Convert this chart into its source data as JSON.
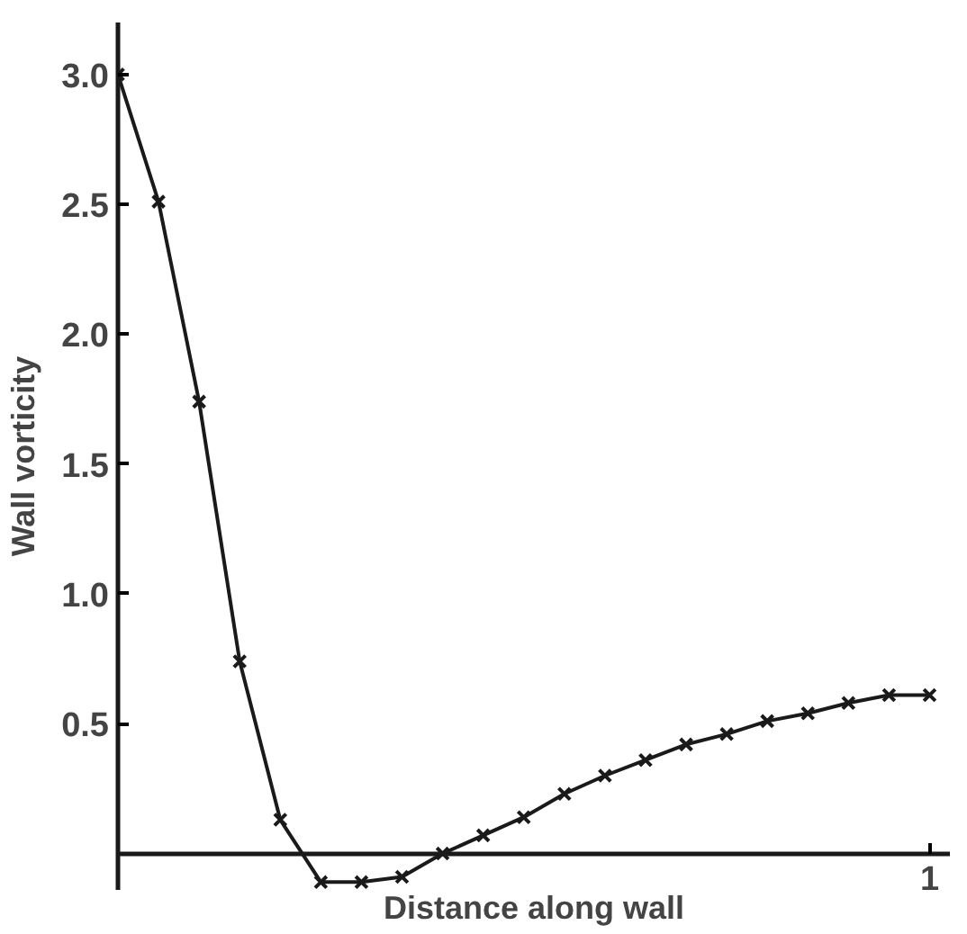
{
  "chart_data": {
    "type": "line",
    "xlabel": "Distance along wall",
    "ylabel": "Wall vorticity",
    "categories": [
      null,
      null,
      null,
      null,
      null,
      null,
      null,
      null,
      null,
      null,
      null,
      null,
      null,
      null,
      null,
      null,
      null,
      null,
      null,
      null,
      null
    ],
    "series": [
      {
        "color": "#1a1a1a",
        "values": [
          3.0,
          2.51,
          1.74,
          0.74,
          0.13,
          -0.11,
          -0.11,
          -0.09,
          0.0,
          0.07,
          0.14,
          0.23,
          0.3,
          0.36,
          0.42,
          0.46,
          0.51,
          0.54,
          0.58,
          0.61,
          0.61
        ]
      }
    ],
    "ylim": [
      -0.14,
      3.2
    ],
    "yticks": [
      {
        "value": 0.5,
        "label": "0.5"
      },
      {
        "value": 1.0,
        "label": "1.0"
      },
      {
        "value": 1.5,
        "label": "1.5"
      },
      {
        "value": 2.0,
        "label": "2.0"
      },
      {
        "value": 2.5,
        "label": "2.5"
      },
      {
        "value": 3.0,
        "label": "3.0"
      }
    ],
    "annotations": [
      "1"
    ],
    "grid": false,
    "marker": "cross",
    "line_style": "solid"
  }
}
